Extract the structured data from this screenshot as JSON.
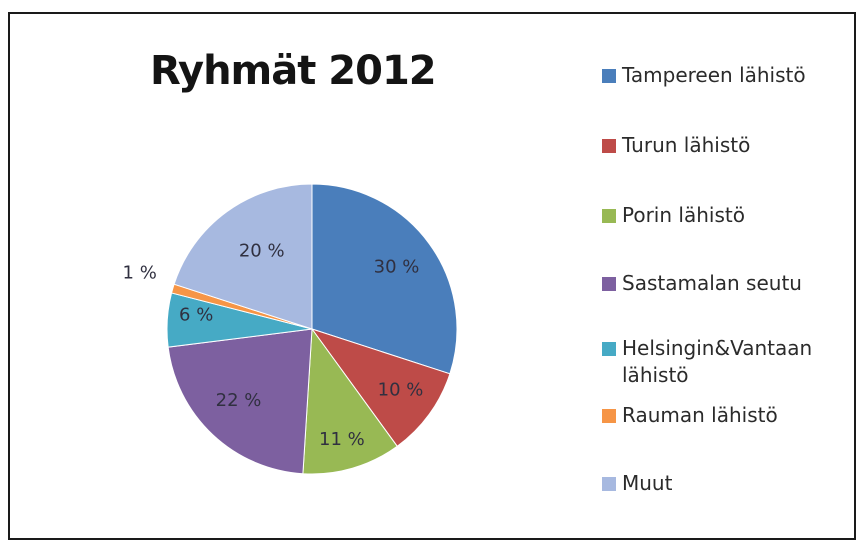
{
  "chart_data": {
    "type": "pie",
    "title": "Ryhmät 2012",
    "legend_position": "right",
    "slices": [
      {
        "label": "Tampereen lähistö",
        "value": 30,
        "display": "30 %",
        "color": "#4a7ebb"
      },
      {
        "label": "Turun lähistö",
        "value": 10,
        "display": "10 %",
        "color": "#be4b48"
      },
      {
        "label": "Porin lähistö",
        "value": 11,
        "display": "11 %",
        "color": "#98b954"
      },
      {
        "label": "Sastamalan seutu",
        "value": 22,
        "display": "22 %",
        "color": "#7d60a0"
      },
      {
        "label": "Helsingin&Vantaan lähistö",
        "value": 6,
        "display": "6 %",
        "color": "#46aac5"
      },
      {
        "label": "Rauman lähistö",
        "value": 1,
        "display": "1 %",
        "color": "#f69546"
      },
      {
        "label": "Muut",
        "value": 20,
        "display": "20 %",
        "color": "#a7b9e0"
      }
    ]
  }
}
